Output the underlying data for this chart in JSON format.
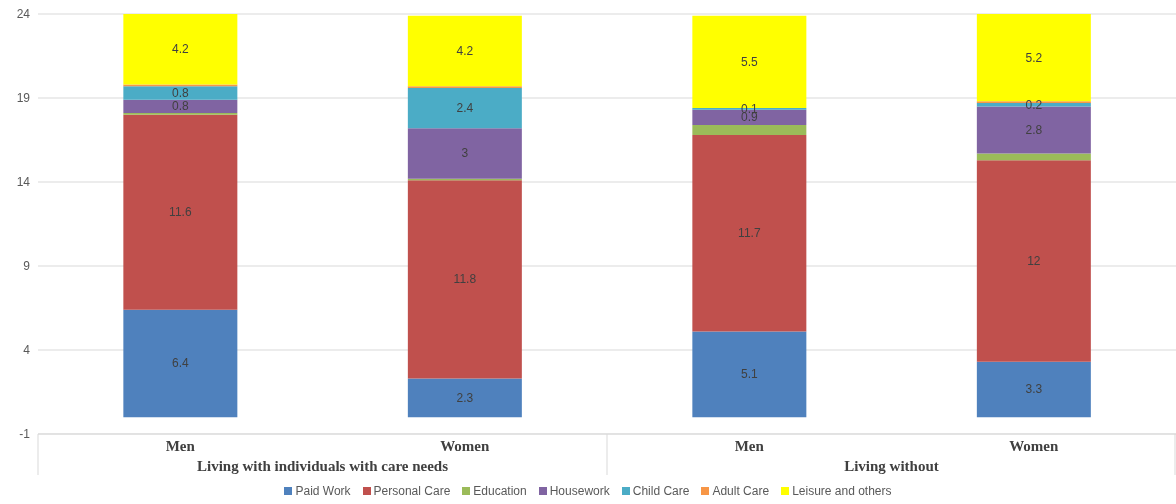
{
  "chart_data": {
    "type": "bar",
    "stacked": true,
    "categories": [
      "Men",
      "Women",
      "Men",
      "Women"
    ],
    "annotations": [
      "Living with individuals with care needs",
      "Living without"
    ],
    "series": [
      {
        "name": "Paid Work",
        "color": "#4f81bd",
        "values": [
          6.4,
          2.3,
          5.1,
          3.3
        ],
        "value_labels": [
          "6.4",
          "2.3",
          "5.1",
          "3.3"
        ]
      },
      {
        "name": "Personal Care",
        "color": "#c0504d",
        "values": [
          11.6,
          11.8,
          11.7,
          12
        ],
        "value_labels": [
          "11.6",
          "11.8",
          "11.7",
          "12"
        ]
      },
      {
        "name": "Education",
        "color": "#9bbb59",
        "values": [
          0.1,
          0.1,
          0.6,
          0.4
        ],
        "value_labels": [
          null,
          null,
          null,
          null
        ]
      },
      {
        "name": "Housework",
        "color": "#8064a2",
        "values": [
          0.8,
          3,
          0.9,
          2.8
        ],
        "value_labels": [
          "0.8",
          "3",
          "0.9",
          "2.8"
        ]
      },
      {
        "name": "Child Care",
        "color": "#4bacc6",
        "values": [
          0.8,
          2.4,
          0.1,
          0.2
        ],
        "value_labels": [
          "0.8",
          "2.4",
          "0.1",
          "0.2"
        ]
      },
      {
        "name": "Adult Care",
        "color": "#f79646",
        "values": [
          0.1,
          0.1,
          0,
          0.1
        ],
        "value_labels": [
          null,
          null,
          null,
          null
        ]
      },
      {
        "name": "Leisure and others",
        "color": "#ffff00",
        "values": [
          4.2,
          4.2,
          5.5,
          5.2
        ],
        "value_labels": [
          "4.2",
          "4.2",
          "5.5",
          "5.2"
        ]
      }
    ],
    "ylim": [
      -1,
      24
    ],
    "yticks": [
      -1,
      4,
      9,
      14,
      19,
      24
    ],
    "grid": "y",
    "legend": "bottom"
  }
}
